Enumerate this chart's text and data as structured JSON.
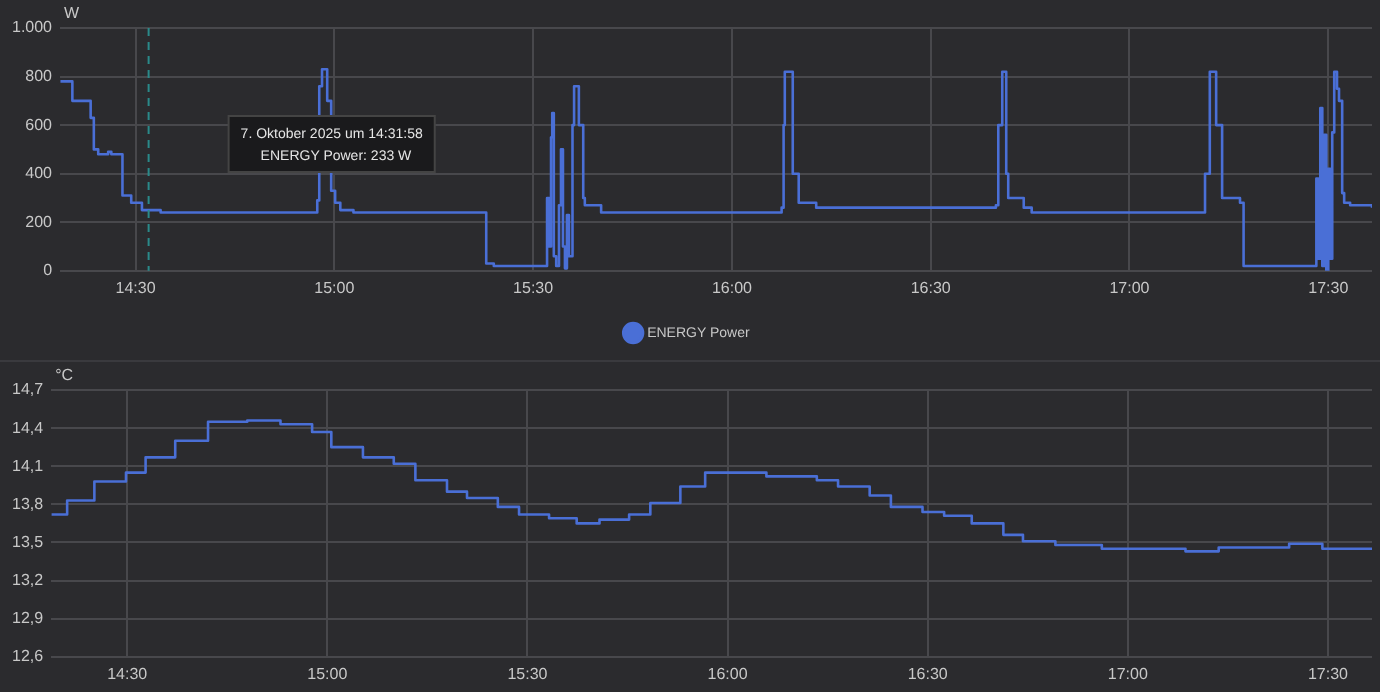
{
  "chart_data": [
    {
      "type": "step",
      "ylabel": "W",
      "legend": "bottom",
      "grid": true,
      "marker": "none",
      "xlim": [
        14.31,
        17.61
      ],
      "xticks": [
        {
          "value": 14.5,
          "label": "14:30"
        },
        {
          "value": 15,
          "label": "15:00"
        },
        {
          "value": 15.5,
          "label": "15:30"
        },
        {
          "value": 16,
          "label": "16:00"
        },
        {
          "value": 16.5,
          "label": "16:30"
        },
        {
          "value": 17,
          "label": "17:00"
        },
        {
          "value": 17.5,
          "label": "17:30"
        }
      ],
      "ylim": [
        0,
        1000
      ],
      "yticks": [
        0,
        200,
        400,
        600,
        800,
        {
          "value": 1000,
          "label": "1.000"
        }
      ],
      "ref_lines": [
        {
          "axis": "x",
          "value": 14.5328,
          "color": "#2a8a8a",
          "line_style": "dashed"
        }
      ],
      "annotations": [
        "7. Oktober 2025 um 14:31:58",
        "ENERGY Power: 233 W"
      ],
      "series": [
        {
          "name": "ENERGY Power",
          "color": "#4a6fd6",
          "x": [
            14.311,
            14.341,
            14.387,
            14.395,
            14.406,
            14.431,
            14.439,
            14.467,
            14.489,
            14.516,
            14.563,
            14.957,
            14.962,
            14.969,
            14.982,
            14.992,
            15.002,
            15.015,
            15.048,
            15.382,
            15.401,
            15.535,
            15.54,
            15.545,
            15.548,
            15.552,
            15.558,
            15.565,
            15.57,
            15.575,
            15.58,
            15.585,
            15.59,
            15.599,
            15.603,
            15.615,
            15.626,
            15.63,
            15.671,
            16.125,
            16.13,
            16.133,
            16.153,
            16.168,
            16.212,
            16.664,
            16.67,
            16.68,
            16.69,
            16.695,
            16.734,
            16.754,
            17.19,
            17.202,
            17.218,
            17.233,
            17.278,
            17.287,
            17.466,
            17.47,
            17.475,
            17.48,
            17.485,
            17.49,
            17.495,
            17.5,
            17.505,
            17.51,
            17.515,
            17.522,
            17.527,
            17.535,
            17.54,
            17.555,
            17.61
          ],
          "values": [
            780,
            700,
            630,
            500,
            480,
            490,
            480,
            310,
            280,
            250,
            240,
            290,
            760,
            830,
            700,
            330,
            280,
            250,
            240,
            30,
            20,
            300,
            100,
            550,
            650,
            60,
            20,
            270,
            500,
            100,
            10,
            230,
            60,
            600,
            760,
            600,
            300,
            270,
            240,
            260,
            600,
            820,
            400,
            280,
            260,
            270,
            600,
            820,
            400,
            300,
            260,
            240,
            400,
            820,
            600,
            300,
            280,
            20,
            20,
            380,
            50,
            670,
            20,
            560,
            0,
            420,
            50,
            570,
            820,
            750,
            700,
            320,
            280,
            270,
            260
          ]
        }
      ]
    },
    {
      "type": "step",
      "ylabel": "°C",
      "grid": true,
      "marker": "none",
      "xlim": [
        14.31,
        17.61
      ],
      "xticks": [
        {
          "value": 14.5,
          "label": "14:30"
        },
        {
          "value": 15,
          "label": "15:00"
        },
        {
          "value": 15.5,
          "label": "15:30"
        },
        {
          "value": 16,
          "label": "16:00"
        },
        {
          "value": 16.5,
          "label": "16:30"
        },
        {
          "value": 17,
          "label": "17:00"
        },
        {
          "value": 17.5,
          "label": "17:30"
        }
      ],
      "ylim": [
        12.6,
        14.7
      ],
      "yticks": [
        {
          "value": 12.6,
          "label": "12,6"
        },
        {
          "value": 12.9,
          "label": "12,9"
        },
        {
          "value": 13.2,
          "label": "13,2"
        },
        {
          "value": 13.5,
          "label": "13,5"
        },
        {
          "value": 13.8,
          "label": "13,8"
        },
        {
          "value": 14.1,
          "label": "14,1"
        },
        {
          "value": 14.4,
          "label": "14,4"
        },
        {
          "value": 14.7,
          "label": "14,7"
        }
      ],
      "series": [
        {
          "color": "#4a6fd6",
          "x": [
            14.311,
            14.35,
            14.418,
            14.497,
            14.546,
            14.62,
            14.702,
            14.8,
            14.883,
            14.962,
            15.01,
            15.089,
            15.166,
            15.22,
            15.299,
            15.349,
            15.426,
            15.479,
            15.554,
            15.623,
            15.68,
            15.754,
            15.807,
            15.882,
            15.944,
            16.097,
            16.223,
            16.276,
            16.355,
            16.408,
            16.487,
            16.541,
            16.61,
            16.689,
            16.738,
            16.819,
            16.935,
            17.144,
            17.227,
            17.403,
            17.486,
            17.61
          ],
          "values": [
            13.72,
            13.83,
            13.98,
            14.05,
            14.17,
            14.3,
            14.45,
            14.46,
            14.43,
            14.37,
            14.25,
            14.17,
            14.12,
            13.99,
            13.9,
            13.85,
            13.78,
            13.72,
            13.69,
            13.65,
            13.68,
            13.72,
            13.81,
            13.94,
            14.05,
            14.02,
            13.99,
            13.94,
            13.87,
            13.78,
            13.74,
            13.71,
            13.65,
            13.56,
            13.51,
            13.48,
            13.45,
            13.43,
            13.46,
            13.49,
            13.45,
            13.45
          ]
        }
      ]
    }
  ]
}
